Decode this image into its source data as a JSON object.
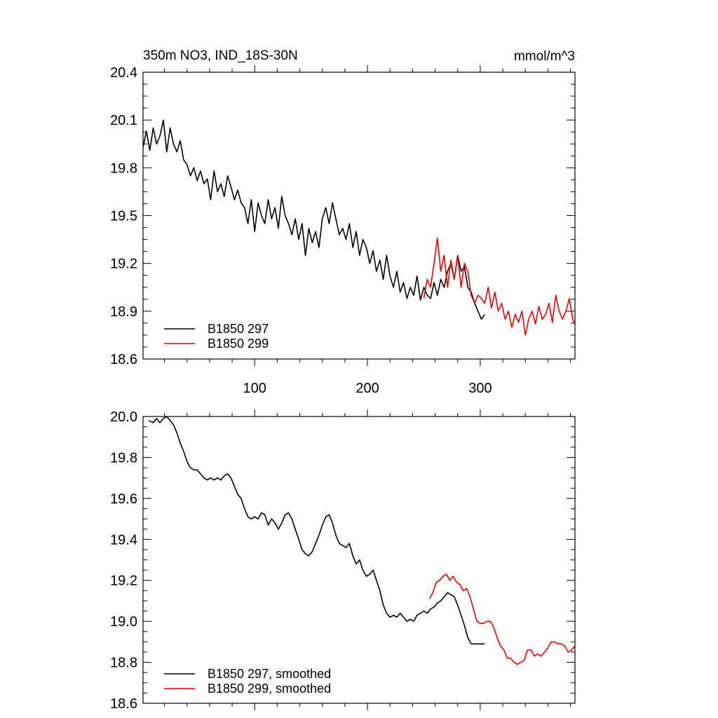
{
  "chart_data": [
    {
      "type": "line",
      "title": "350m NO3, IND_18S-30N",
      "units": "mmol/m^3",
      "xlim": [
        1,
        384
      ],
      "ylim": [
        18.6,
        20.4
      ],
      "xticks": [
        100,
        200,
        300
      ],
      "yticks": [
        "18.6",
        "18.9",
        "19.2",
        "19.5",
        "19.8",
        "20.1",
        "20.4"
      ],
      "legend_position": "bottom-left",
      "series": [
        {
          "name": "B1850 297",
          "color": "#000000",
          "x": [
            1,
            4,
            7,
            10,
            13,
            16,
            19,
            22,
            25,
            28,
            31,
            34,
            37,
            40,
            43,
            46,
            49,
            52,
            55,
            58,
            61,
            64,
            67,
            70,
            73,
            76,
            79,
            82,
            85,
            88,
            91,
            94,
            97,
            100,
            103,
            106,
            109,
            112,
            115,
            118,
            121,
            124,
            127,
            130,
            133,
            136,
            139,
            142,
            145,
            148,
            151,
            154,
            157,
            160,
            163,
            166,
            169,
            172,
            175,
            178,
            181,
            184,
            187,
            190,
            193,
            196,
            199,
            202,
            205,
            208,
            211,
            214,
            217,
            220,
            223,
            226,
            229,
            232,
            235,
            238,
            241,
            244,
            247,
            250,
            253,
            256,
            259,
            262,
            265,
            268,
            271,
            274,
            277,
            280,
            283,
            286,
            289,
            292,
            295,
            298,
            301,
            304
          ],
          "y": [
            19.93,
            20.03,
            19.91,
            20.05,
            19.95,
            20.0,
            20.1,
            19.9,
            20.05,
            19.95,
            19.9,
            19.97,
            19.85,
            19.82,
            19.75,
            19.8,
            19.72,
            19.78,
            19.7,
            19.73,
            19.6,
            19.78,
            19.65,
            19.7,
            19.62,
            19.75,
            19.68,
            19.6,
            19.66,
            19.58,
            19.55,
            19.45,
            19.6,
            19.4,
            19.58,
            19.5,
            19.45,
            19.6,
            19.48,
            19.55,
            19.42,
            19.62,
            19.5,
            19.45,
            19.38,
            19.48,
            19.35,
            19.45,
            19.25,
            19.42,
            19.33,
            19.4,
            19.3,
            19.48,
            19.55,
            19.45,
            19.58,
            19.48,
            19.38,
            19.42,
            19.35,
            19.45,
            19.3,
            19.4,
            19.25,
            19.35,
            19.3,
            19.2,
            19.28,
            19.15,
            19.22,
            19.1,
            19.25,
            19.12,
            19.05,
            19.15,
            19.02,
            19.08,
            18.98,
            19.05,
            19.0,
            19.12,
            18.97,
            19.05,
            19.0,
            18.98,
            19.08,
            19.0,
            19.1,
            19.05,
            19.15,
            19.2,
            19.1,
            19.25,
            19.15,
            19.18,
            19.05,
            19.02,
            18.95,
            18.9,
            18.85,
            18.88
          ]
        },
        {
          "name": "B1850 299",
          "color": "#e00000",
          "x": [
            250,
            253,
            256,
            259,
            262,
            265,
            268,
            271,
            274,
            277,
            280,
            283,
            286,
            289,
            292,
            295,
            298,
            301,
            304,
            307,
            310,
            313,
            316,
            319,
            322,
            325,
            328,
            331,
            334,
            337,
            340,
            343,
            346,
            349,
            352,
            355,
            358,
            361,
            364,
            367,
            370,
            373,
            376,
            379,
            382,
            384
          ],
          "y": [
            18.98,
            19.1,
            19.05,
            19.2,
            19.36,
            19.15,
            19.25,
            19.05,
            19.22,
            19.1,
            19.25,
            19.05,
            19.2,
            19.15,
            19.0,
            18.95,
            19.0,
            18.98,
            18.95,
            19.05,
            18.92,
            19.02,
            18.9,
            18.95,
            18.85,
            18.9,
            18.8,
            18.88,
            18.83,
            18.9,
            18.75,
            18.85,
            18.9,
            18.82,
            18.93,
            18.85,
            18.88,
            18.95,
            18.83,
            19.0,
            18.9,
            18.85,
            18.9,
            18.98,
            18.85,
            18.82
          ]
        }
      ]
    },
    {
      "type": "line",
      "xlim": [
        1,
        384
      ],
      "ylim": [
        18.6,
        20.0
      ],
      "xticks": [
        100,
        200,
        300
      ],
      "yticks": [
        "18.6",
        "18.8",
        "19.0",
        "19.2",
        "19.4",
        "19.6",
        "19.8",
        "20.0"
      ],
      "legend_position": "bottom-left",
      "series": [
        {
          "name": "B1850 297, smoothed",
          "color": "#000000",
          "x": [
            6,
            10,
            13,
            16,
            19,
            22,
            25,
            28,
            31,
            34,
            37,
            40,
            43,
            46,
            49,
            52,
            55,
            58,
            61,
            64,
            67,
            70,
            73,
            76,
            79,
            82,
            85,
            88,
            91,
            94,
            97,
            100,
            103,
            106,
            109,
            112,
            115,
            118,
            121,
            124,
            127,
            130,
            133,
            136,
            139,
            142,
            145,
            148,
            151,
            154,
            157,
            160,
            163,
            166,
            169,
            172,
            175,
            178,
            181,
            184,
            187,
            190,
            193,
            196,
            199,
            202,
            205,
            208,
            211,
            214,
            217,
            220,
            223,
            226,
            229,
            232,
            235,
            238,
            241,
            244,
            247,
            250,
            253,
            256,
            259,
            262,
            265,
            268,
            271,
            274,
            277,
            280,
            283,
            286,
            289,
            292,
            295,
            298,
            301,
            304
          ],
          "y": [
            19.98,
            19.97,
            19.99,
            19.97,
            19.99,
            20.0,
            19.98,
            19.96,
            19.92,
            19.87,
            19.83,
            19.78,
            19.75,
            19.74,
            19.74,
            19.72,
            19.7,
            19.69,
            19.7,
            19.69,
            19.7,
            19.69,
            19.71,
            19.72,
            19.7,
            19.66,
            19.62,
            19.6,
            19.55,
            19.51,
            19.5,
            19.51,
            19.5,
            19.53,
            19.52,
            19.47,
            19.5,
            19.48,
            19.45,
            19.48,
            19.52,
            19.53,
            19.5,
            19.45,
            19.4,
            19.35,
            19.33,
            19.32,
            19.34,
            19.38,
            19.42,
            19.47,
            19.51,
            19.52,
            19.48,
            19.42,
            19.38,
            19.37,
            19.36,
            19.38,
            19.32,
            19.28,
            19.3,
            19.25,
            19.22,
            19.23,
            19.25,
            19.2,
            19.15,
            19.08,
            19.04,
            19.02,
            19.03,
            19.02,
            19.04,
            19.02,
            19.0,
            19.01,
            19.0,
            19.03,
            19.04,
            19.05,
            19.04,
            19.06,
            19.07,
            19.09,
            19.1,
            19.12,
            19.14,
            19.13,
            19.12,
            19.08,
            19.03,
            18.98,
            18.92,
            18.89,
            18.89,
            18.89,
            18.89,
            18.89
          ]
        },
        {
          "name": "B1850 299, smoothed",
          "color": "#e00000",
          "x": [
            255,
            258,
            261,
            264,
            267,
            270,
            273,
            276,
            279,
            282,
            285,
            288,
            291,
            294,
            297,
            300,
            303,
            306,
            309,
            312,
            315,
            318,
            321,
            324,
            327,
            330,
            333,
            336,
            339,
            342,
            345,
            348,
            351,
            354,
            357,
            360,
            363,
            366,
            369,
            372,
            375,
            378,
            381,
            384
          ],
          "y": [
            19.11,
            19.14,
            19.19,
            19.2,
            19.22,
            19.23,
            19.2,
            19.22,
            19.19,
            19.18,
            19.15,
            19.16,
            19.12,
            19.06,
            19.0,
            18.99,
            18.99,
            19.0,
            19.0,
            18.97,
            18.92,
            18.88,
            18.86,
            18.82,
            18.82,
            18.8,
            18.79,
            18.8,
            18.81,
            18.86,
            18.86,
            18.83,
            18.84,
            18.83,
            18.85,
            18.87,
            18.9,
            18.9,
            18.89,
            18.89,
            18.88,
            18.85,
            18.86,
            18.88
          ]
        }
      ]
    }
  ]
}
